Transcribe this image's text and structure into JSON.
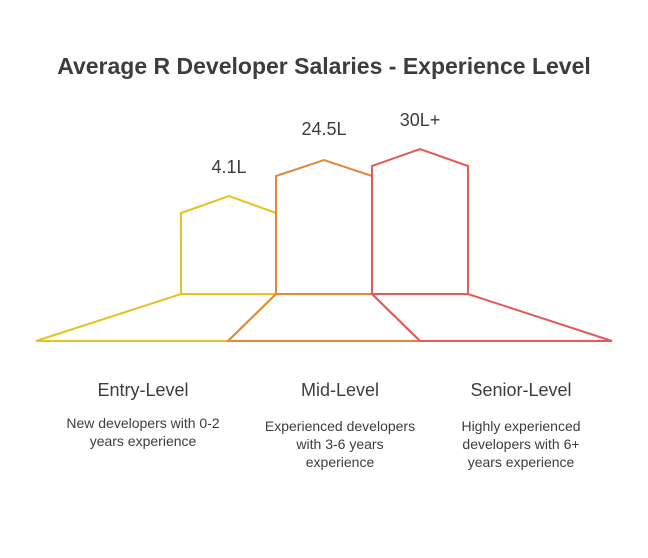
{
  "title": "Average R Developer Salaries - Experience Level",
  "levels": [
    {
      "name": "Entry-Level",
      "value": "4.1L",
      "description": [
        "New developers with 0-2",
        "years experience"
      ],
      "color": "#e4c21f"
    },
    {
      "name": "Mid-Level",
      "value": "24.5L",
      "description": [
        "Experienced developers",
        "with 3-6 years",
        "experience"
      ],
      "color": "#e0893a"
    },
    {
      "name": "Senior-Level",
      "value": "30L+",
      "description": [
        "Highly experienced",
        "developers with 6+",
        "years experience"
      ],
      "color": "#e35a57"
    }
  ]
}
